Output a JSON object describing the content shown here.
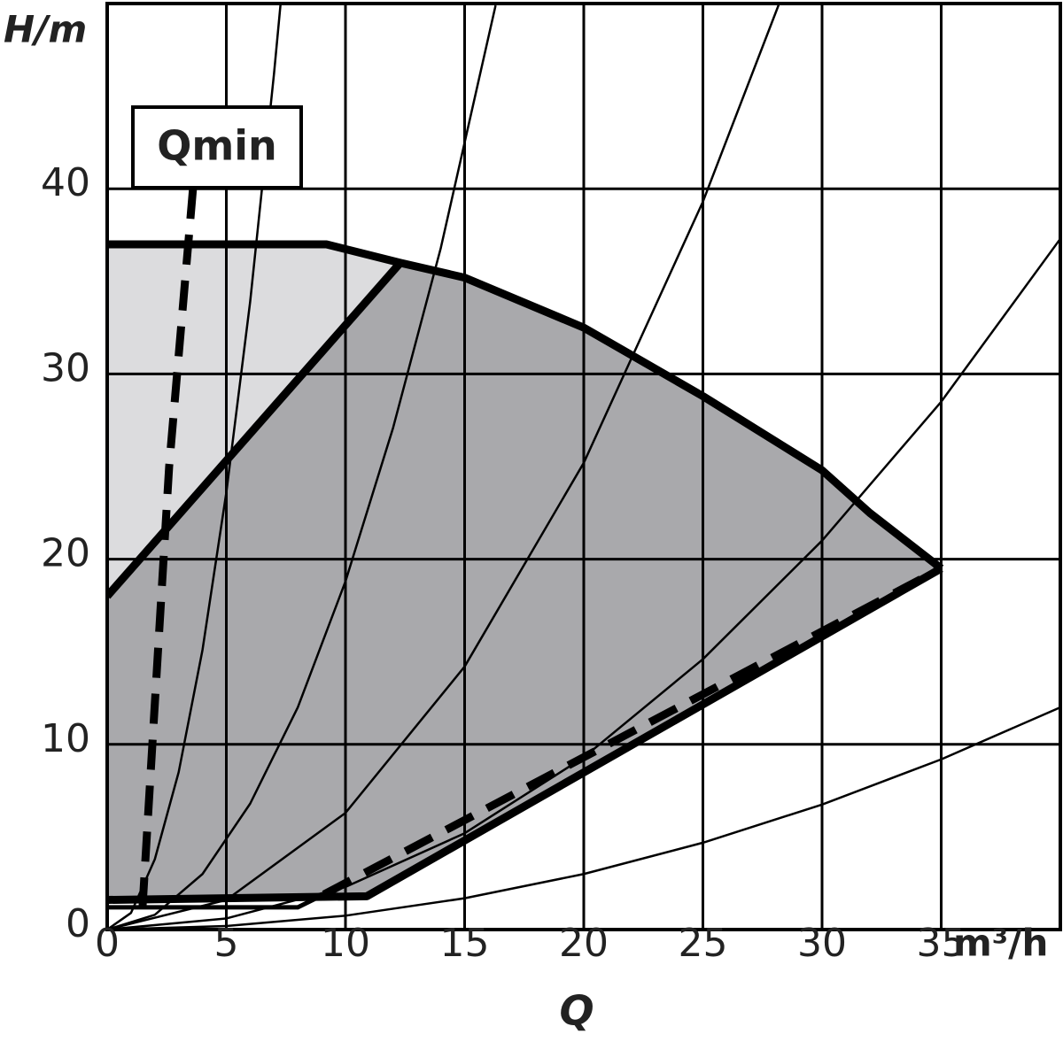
{
  "chart_data": {
    "type": "pump-curve",
    "y_label": "H/m",
    "x_unit": "m³/h",
    "x_label": "Q",
    "annotation": "Qmin",
    "xlim": [
      0,
      40
    ],
    "ylim": [
      0,
      50
    ],
    "xticks": [
      0,
      5,
      10,
      15,
      20,
      25,
      30,
      35
    ],
    "yticks": [
      0,
      10,
      20,
      30,
      40
    ],
    "grid": true,
    "areas": [
      {
        "fill": "#dcdcde",
        "x": [
          0,
          0,
          9.2,
          12.3
        ],
        "values": [
          18,
          37,
          37,
          36
        ]
      },
      {
        "fill": "#a9a9ac",
        "x": [
          0,
          12.3,
          15,
          20,
          25,
          30,
          32,
          35,
          10.9,
          0
        ],
        "values": [
          18,
          36,
          35.2,
          32.5,
          28.8,
          24.8,
          22.5,
          19.5,
          1.8,
          1.6
        ]
      }
    ],
    "lines": [
      {
        "color": "#000000",
        "weight": "light",
        "x": [
          0,
          1,
          2,
          3,
          4,
          5,
          6,
          7,
          7.3
        ],
        "values": [
          0,
          0.9,
          3.8,
          8.5,
          15.1,
          23.6,
          33.9,
          46.2,
          50.3
        ]
      },
      {
        "color": "#000000",
        "weight": "light",
        "x": [
          0,
          2,
          4,
          6,
          8,
          10,
          12,
          14,
          16.3
        ],
        "values": [
          0,
          0.8,
          3.0,
          6.8,
          12.0,
          18.8,
          27.1,
          36.8,
          49.9
        ]
      },
      {
        "color": "#000000",
        "weight": "light",
        "x": [
          0,
          5,
          10,
          15,
          20,
          25,
          28.2
        ],
        "values": [
          0,
          1.6,
          6.3,
          14.2,
          25.2,
          39.3,
          50.0
        ]
      },
      {
        "color": "#000000",
        "weight": "light",
        "x": [
          0,
          5,
          10,
          15,
          20,
          25,
          30,
          35,
          40
        ],
        "values": [
          0,
          0.6,
          2.3,
          5.2,
          9.3,
          14.6,
          21.0,
          28.5,
          37.3
        ]
      },
      {
        "color": "#000000",
        "weight": "light",
        "x": [
          0,
          5,
          10,
          15,
          20,
          25,
          30,
          35,
          40
        ],
        "values": [
          0,
          0.19,
          0.75,
          1.69,
          3.0,
          4.69,
          6.75,
          9.19,
          12.0
        ]
      },
      {
        "color": "#000000",
        "weight": "heavy",
        "x": [
          0,
          9.2,
          12.3,
          15,
          20,
          25,
          30,
          32,
          35
        ],
        "values": [
          37,
          37,
          36,
          35.2,
          32.5,
          28.8,
          24.8,
          22.5,
          19.5
        ]
      },
      {
        "color": "#000000",
        "weight": "heavy",
        "x": [
          0,
          12.3
        ],
        "values": [
          18,
          36
        ]
      },
      {
        "color": "#000000",
        "weight": "heavy",
        "x": [
          0,
          10.9,
          35
        ],
        "values": [
          1.6,
          1.8,
          19.5
        ]
      },
      {
        "color": "#000000",
        "weight": "medium",
        "x": [
          0,
          8,
          9.1
        ],
        "values": [
          1.2,
          1.2,
          1.9
        ]
      },
      {
        "color": "#000000",
        "weight": "heavy",
        "dashed": true,
        "x": [
          9.1,
          35
        ],
        "values": [
          1.9,
          19.5
        ]
      },
      {
        "color": "#000000",
        "weight": "heavy",
        "dashed": true,
        "x": [
          3.6,
          3.4,
          2.6,
          1.45
        ],
        "values": [
          40,
          37,
          25,
          0.5
        ]
      }
    ]
  }
}
